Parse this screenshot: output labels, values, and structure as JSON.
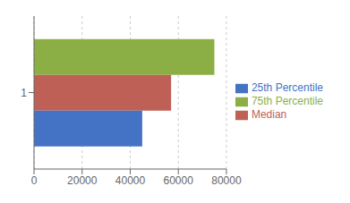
{
  "chart_data": {
    "type": "bar",
    "orientation": "horizontal",
    "categories": [
      "1"
    ],
    "series": [
      {
        "name": "75th Percentile",
        "color": "#8BAF45",
        "values": [
          75000
        ]
      },
      {
        "name": "Median",
        "color": "#BE6055",
        "values": [
          57000
        ]
      },
      {
        "name": "25th Percentile",
        "color": "#4472C4",
        "values": [
          45000
        ]
      }
    ],
    "xlim": [
      0,
      80000
    ],
    "xticks": [
      0,
      20000,
      40000,
      60000,
      80000
    ],
    "grid": true,
    "legend": "right"
  }
}
